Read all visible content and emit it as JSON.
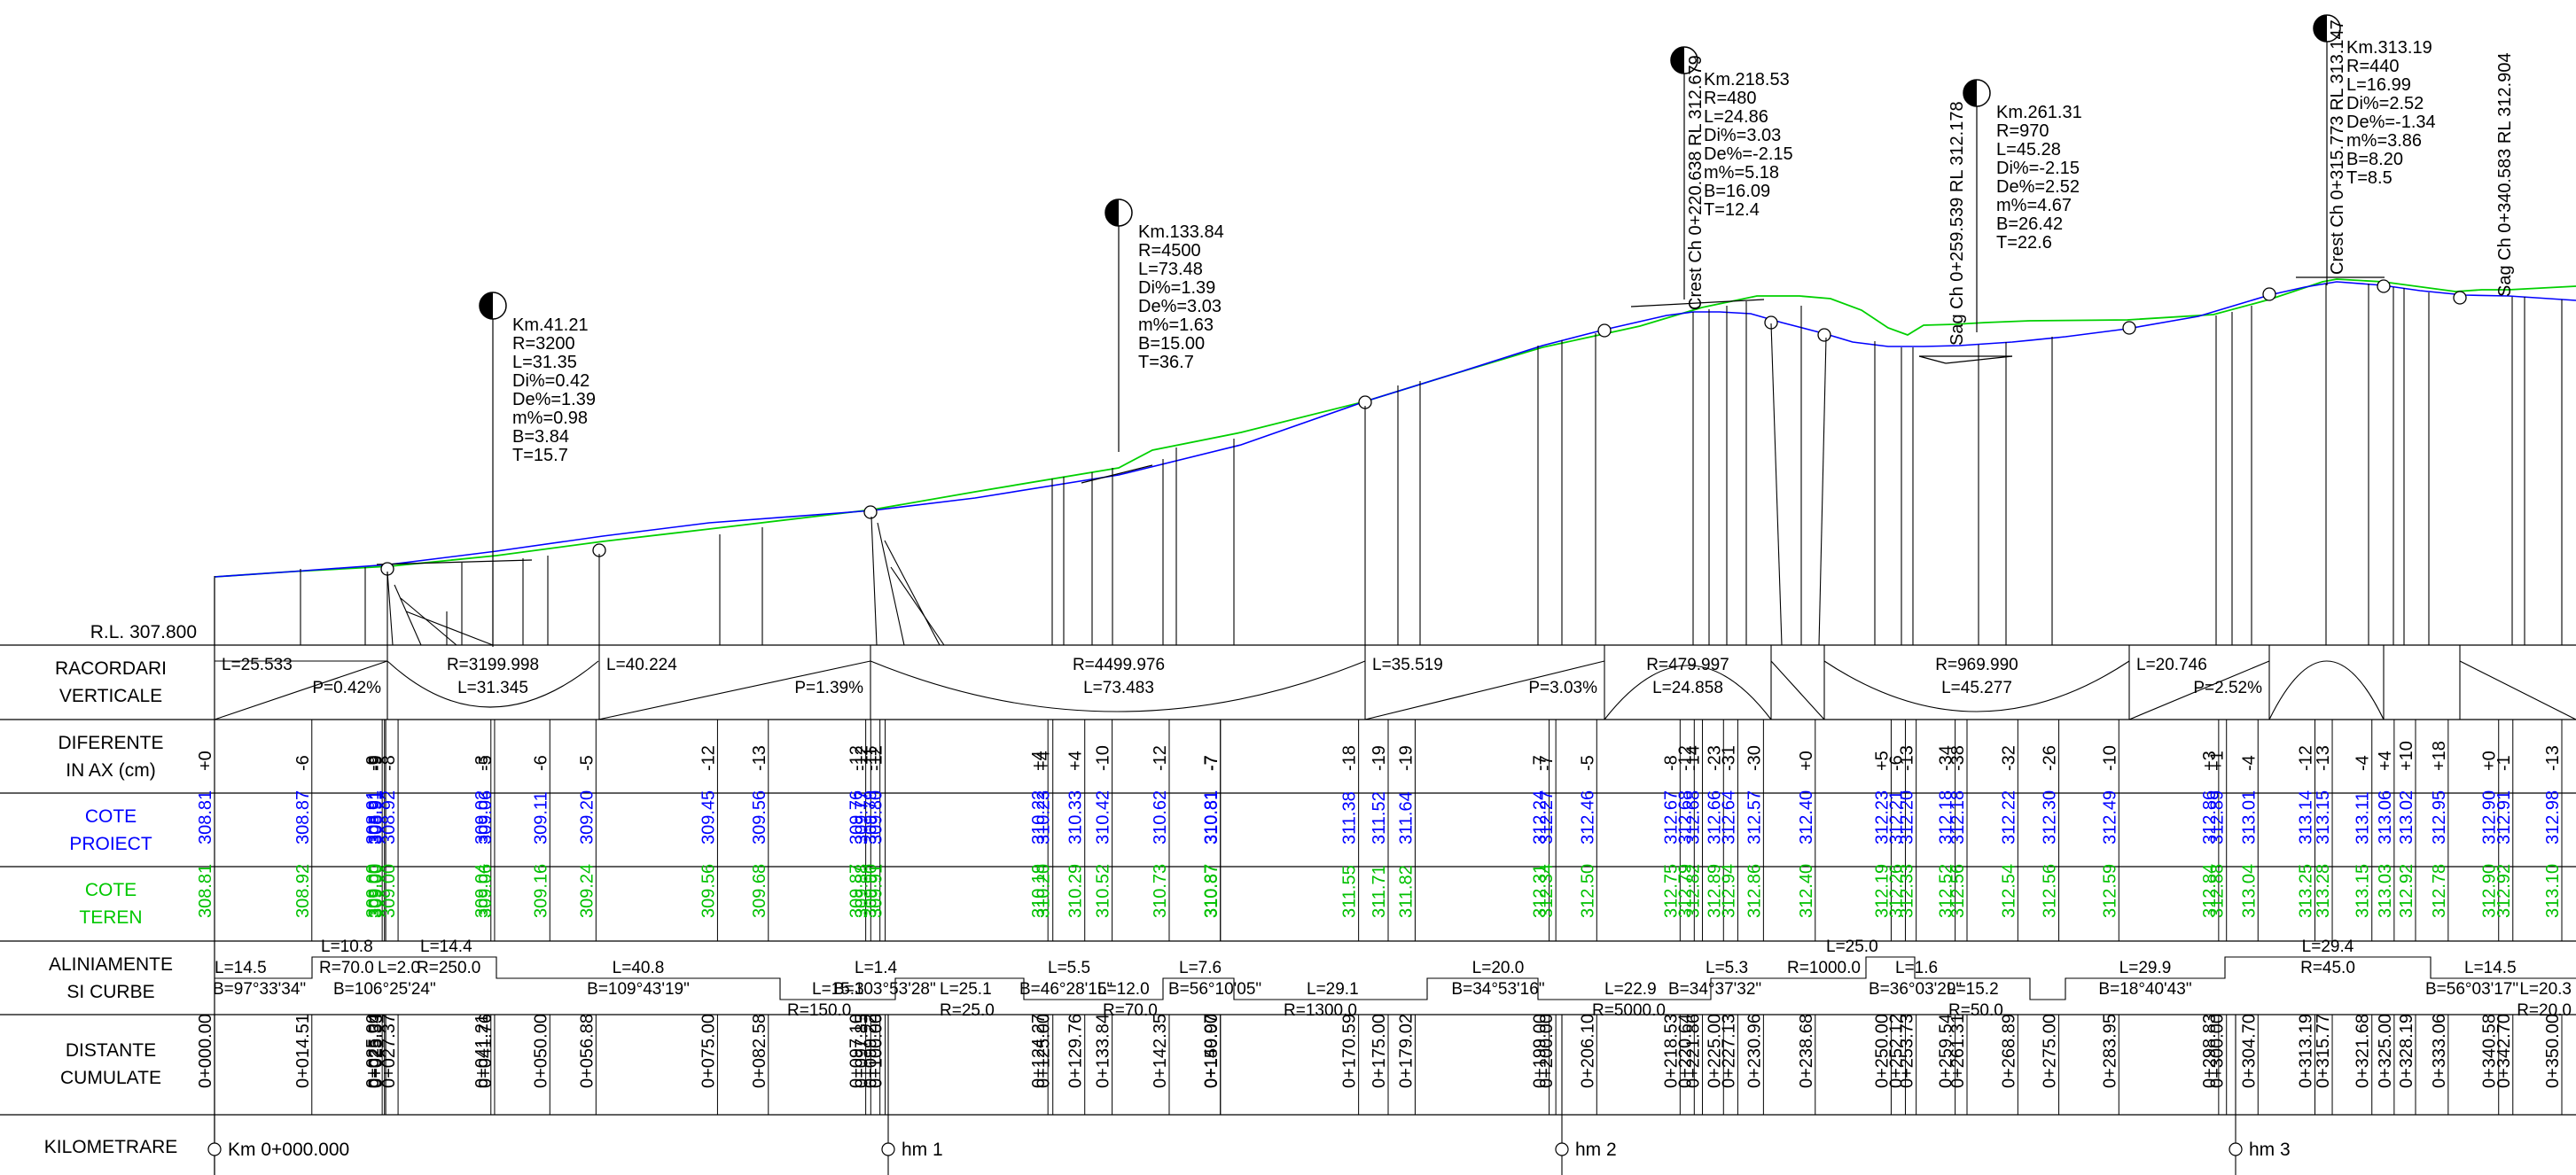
{
  "rl": "R.L. 307.800",
  "headers": {
    "racordari": [
      "RACORDARI",
      "VERTICALE"
    ],
    "diferente": [
      "DIFERENTE",
      "IN AX (cm)"
    ],
    "cote_proiect": [
      "COTE",
      "PROIECT"
    ],
    "cote_teren": [
      "COTE",
      "TEREN"
    ],
    "aliniamente": [
      "ALINIAMENTE",
      "SI CURBE"
    ],
    "distante": [
      "DISTANTE",
      "CUMULATE"
    ],
    "kilometrare": "KILOMETRARE"
  },
  "colors": {
    "design": "#0000ff",
    "terrain": "#00c000",
    "lines": "#000000"
  },
  "callouts": [
    {
      "lines": [
        "Km.41.21",
        "R=3200",
        "L=31.35",
        "Di%=0.42",
        "De%=1.39",
        "m%=0.98",
        "B=3.84",
        "T=15.7"
      ]
    },
    {
      "lines": [
        "Km.133.84",
        "R=4500",
        "L=73.48",
        "Di%=1.39",
        "De%=3.03",
        "m%=1.63",
        "B=15.00",
        "T=36.7"
      ]
    },
    {
      "lines": [
        "Km.218.53",
        "R=480",
        "L=24.86",
        "Di%=3.03",
        "De%=-2.15",
        "m%=5.18",
        "B=16.09",
        "T=12.4"
      ]
    },
    {
      "lines": [
        "Km.261.31",
        "R=970",
        "L=45.28",
        "Di%=-2.15",
        "De%=2.52",
        "m%=4.67",
        "B=26.42",
        "T=22.6"
      ]
    },
    {
      "lines": [
        "Km.313.19",
        "R=440",
        "L=16.99",
        "Di%=2.52",
        "De%=-1.34",
        "m%=3.86",
        "B=8.20",
        "T=8.5"
      ]
    }
  ],
  "vertical_labels": [
    "Crest Ch 0+220.638 RL 312.679",
    "Sag Ch 0+259.539 RL 312.178",
    "Crest Ch 0+315.773 RL 313.147",
    "Sag Ch 0+340.583 RL 312.904"
  ],
  "racordari_texts": [
    "L=25.533",
    "P=0.42%",
    "R=3199.998",
    "L=31.345",
    "L=40.224",
    "P=1.39%",
    "R=4499.976",
    "L=73.483",
    "L=35.519",
    "P=3.03%",
    "R=479.997",
    "L=24.858",
    "R=969.990",
    "L=45.277",
    "L=20.746",
    "P=2.52%"
  ],
  "diferente": [
    "+0",
    "-6",
    "-9",
    "-9",
    "-9",
    "-8",
    "-3",
    "-5",
    "-6",
    "-5",
    "-12",
    "-13",
    "-12",
    "-12",
    "-11",
    "-12",
    "+4",
    "+4",
    "+4",
    "-10",
    "-12",
    "-7",
    "-7",
    "-18",
    "-19",
    "-19",
    "-7",
    "-7",
    "-5",
    "-8",
    "-12",
    "-14",
    "-23",
    "-31",
    "-30",
    "+0",
    "+5",
    "-6",
    "-13",
    "-34",
    "-38",
    "-32",
    "-26",
    "-10",
    "+3",
    "+1",
    "-4",
    "-12",
    "-13",
    "-4",
    "+4",
    "+10",
    "+18",
    "+0",
    "-1",
    "-13"
  ],
  "cote_proiect": [
    "308.81",
    "308.87",
    "308.91",
    "308.91",
    "308.91",
    "308.92",
    "309.02",
    "309.06",
    "309.11",
    "309.20",
    "309.45",
    "309.56",
    "309.76",
    "309.77",
    "309.79",
    "309.80",
    "310.22",
    "310.23",
    "310.33",
    "310.42",
    "310.62",
    "310.81",
    "310.81",
    "311.38",
    "311.52",
    "311.64",
    "312.24",
    "312.27",
    "312.46",
    "312.67",
    "312.68",
    "312.68",
    "312.66",
    "312.64",
    "312.57",
    "312.40",
    "312.23",
    "312.21",
    "312.20",
    "312.18",
    "312.18",
    "312.22",
    "312.30",
    "312.49",
    "312.86",
    "312.89",
    "313.01",
    "313.14",
    "313.15",
    "313.11",
    "313.06",
    "313.02",
    "312.95",
    "312.90",
    "312.91",
    "312.98"
  ],
  "cote_teren": [
    "308.81",
    "308.92",
    "309.00",
    "309.00",
    "309.00",
    "309.00",
    "309.04",
    "309.06",
    "309.16",
    "309.24",
    "309.56",
    "309.68",
    "309.87",
    "309.88",
    "309.90",
    "309.91",
    "310.19",
    "310.20",
    "310.29",
    "310.52",
    "310.73",
    "310.87",
    "310.87",
    "311.55",
    "311.71",
    "311.82",
    "312.31",
    "312.34",
    "312.50",
    "312.75",
    "312.79",
    "312.82",
    "312.89",
    "312.94",
    "312.86",
    "312.40",
    "312.19",
    "312.26",
    "312.33",
    "312.52",
    "312.56",
    "312.54",
    "312.56",
    "312.59",
    "312.84",
    "312.88",
    "313.04",
    "313.25",
    "313.28",
    "313.15",
    "313.03",
    "312.92",
    "312.78",
    "312.90",
    "312.92",
    "313.10"
  ],
  "distante": [
    "0+000.00",
    "0+014.51",
    "0+025.00",
    "0+025.34",
    "0+025.53",
    "0+027.37",
    "0+041.21",
    "0+041.76",
    "0+050.00",
    "0+056.88",
    "0+075.00",
    "0+082.58",
    "0+097.10",
    "0+097.85",
    "0+099.22",
    "0+100.00",
    "0+124.27",
    "0+125.00",
    "0+129.76",
    "0+133.84",
    "0+142.35",
    "0+149.97",
    "0+150.00",
    "0+170.59",
    "0+175.00",
    "0+179.02",
    "0+199.00",
    "0+200.00",
    "0+206.10",
    "0+218.53",
    "0+220.64",
    "0+221.86",
    "0+225.00",
    "0+227.13",
    "0+230.96",
    "0+238.68",
    "0+250.00",
    "0+252.12",
    "0+253.73",
    "0+259.54",
    "0+261.31",
    "0+268.89",
    "0+275.00",
    "0+283.95",
    "0+298.83",
    "0+300.00",
    "0+304.70",
    "0+313.19",
    "0+315.77",
    "0+321.68",
    "0+325.00",
    "0+328.19",
    "0+333.06",
    "0+340.58",
    "0+342.70",
    "0+350.00"
  ],
  "aliniamente_texts": [
    "L=14.5",
    "B=97°33'34\"",
    "L=10.8",
    "R=70.0",
    "L=2.0",
    "L=14.4",
    "R=250.0",
    "B=106°25'24\"",
    "L=40.8",
    "B=109°43'19\"",
    "L=1.4",
    "L=15.3",
    "B=103°53'28\"",
    "R=150.0",
    "L=25.1",
    "R=25.0",
    "L=5.5",
    "B=46°28'15\"",
    "L=12.0",
    "R=70.0",
    "L=7.6",
    "B=56°10'05\"",
    "L=29.1",
    "R=1300.0",
    "L=20.0",
    "B=34°53'16\"",
    "L=22.9",
    "R=5000.0",
    "L=5.3",
    "B=34°37'32\"",
    "L=25.0",
    "R=1000.0",
    "L=1.6",
    "B=36°03'29\"",
    "L=15.2",
    "R=50.0",
    "L=29.9",
    "B=18°40'43\"",
    "L=29.4",
    "R=45.0",
    "L=14.5",
    "B=56°03'17\"",
    "L=20.3",
    "R=20.0"
  ],
  "kilometrare": [
    "Km 0+000.000",
    "hm 1",
    "hm 2",
    "hm 3"
  ]
}
